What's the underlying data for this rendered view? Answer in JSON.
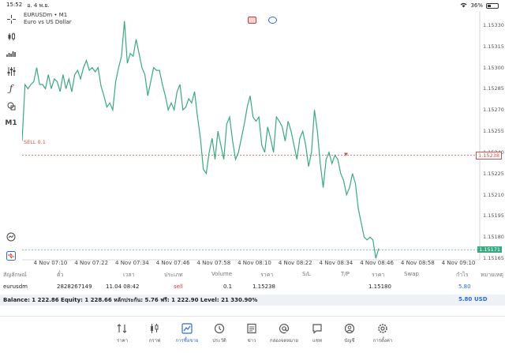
{
  "status": {
    "time": "15:52",
    "date": "อ. 4 พ.ย.",
    "battery": "36%",
    "battery_level": 0.36
  },
  "toolbar": {
    "timeframe_label": "M1"
  },
  "chart": {
    "symbol_line": "EURUSDm • M1",
    "description": "Euro vs US Dollar",
    "sell_line_label": "SELL 0.1",
    "current_price_tag": "1.15171",
    "sell_price_tag": "1.15238",
    "colors": {
      "line": "#3aa981",
      "sell": "#d05050",
      "current": "#3aa981"
    }
  },
  "chart_data": {
    "type": "line",
    "x_labels": [
      "4 Nov 07:10",
      "4 Nov 07:22",
      "4 Nov 07:34",
      "4 Nov 07:46",
      "4 Nov 07:58",
      "4 Nov 08:10",
      "4 Nov 08:22",
      "4 Nov 08:34",
      "4 Nov 08:46",
      "4 Nov 08:58",
      "4 Nov 09:10"
    ],
    "y_ticks": [
      "1.15330",
      "1.15315",
      "1.15300",
      "1.15285",
      "1.15270",
      "1.15255",
      "1.15240",
      "1.15225",
      "1.15210",
      "1.15195",
      "1.15180",
      "1.15165"
    ],
    "ylim": [
      1.1516,
      1.1534
    ],
    "series": [
      {
        "values": [
          1.15248,
          1.15288,
          1.15285,
          1.15288,
          1.1529,
          1.153,
          1.15288,
          1.15288,
          1.15285,
          1.15295,
          1.15285,
          1.15292,
          1.1529,
          1.15283,
          1.15295,
          1.15285,
          1.15292,
          1.15283,
          1.15295,
          1.15298,
          1.15292,
          1.153,
          1.15305,
          1.15298,
          1.153,
          1.15297,
          1.153,
          1.15287,
          1.1528,
          1.15272,
          1.15275,
          1.1527,
          1.1529,
          1.153,
          1.15308,
          1.15333,
          1.15303,
          1.1531,
          1.15308,
          1.1532,
          1.1531,
          1.153,
          1.15295,
          1.1528,
          1.1529,
          1.153,
          1.15298,
          1.15298,
          1.15288,
          1.1528,
          1.1527,
          1.15275,
          1.1527,
          1.15283,
          1.15288,
          1.1527,
          1.15272,
          1.15278,
          1.15275,
          1.15283,
          1.15265,
          1.1525,
          1.15228,
          1.15225,
          1.1524,
          1.1525,
          1.15235,
          1.15255,
          1.15245,
          1.15235,
          1.1526,
          1.15265,
          1.15248,
          1.15235,
          1.1524,
          1.1525,
          1.1526,
          1.15272,
          1.1528,
          1.15265,
          1.15262,
          1.15265,
          1.15245,
          1.1524,
          1.15258,
          1.1525,
          1.1524,
          1.15265,
          1.15262,
          1.15258,
          1.15248,
          1.15262,
          1.15255,
          1.15245,
          1.15235,
          1.1525,
          1.15255,
          1.15245,
          1.1523,
          1.1524,
          1.1527,
          1.15255,
          1.15232,
          1.15215,
          1.15235,
          1.1524,
          1.15232,
          1.15238,
          1.15235,
          1.15225,
          1.1522,
          1.1521,
          1.15215,
          1.15225,
          1.15218,
          1.152,
          1.1519,
          1.1518,
          1.15178,
          1.1518,
          1.15178,
          1.15165,
          1.15172
        ]
      }
    ],
    "hlines": [
      {
        "label": "SELL 0.1",
        "value": 1.15238
      },
      {
        "label": "current",
        "value": 1.15171
      }
    ]
  },
  "positions": {
    "headers": [
      "สัญลักษณ์",
      "ตั๋ว",
      "เวลา",
      "ประเภท",
      "Volume",
      "ราคา",
      "S/L",
      "T/P",
      "ราคา",
      "Swap",
      "กำไร",
      "หมายเหตุ"
    ],
    "rows": [
      {
        "symbol": "eurusdm",
        "ticket": "2828267149",
        "time": "11.04 08:42",
        "type": "sell",
        "volume": "0.1",
        "open_price": "1.15238",
        "sl": "",
        "tp": "",
        "price": "1.15180",
        "swap": "",
        "profit": "5.80",
        "comment": ""
      }
    ]
  },
  "balance": {
    "text": "Balance: 1 222.86 Equity: 1 228.66 หลักประกัน: 5.76 ฟรี: 1 222.90 Level: 21 330.90%",
    "profit": "5.80",
    "currency": "USD"
  },
  "nav": {
    "items": [
      {
        "label": "ราคา",
        "icon": "quotes-icon"
      },
      {
        "label": "กราฟ",
        "icon": "chart-candles-icon"
      },
      {
        "label": "การซื้อขาย",
        "icon": "trade-icon"
      },
      {
        "label": "ประวัติ",
        "icon": "history-icon"
      },
      {
        "label": "ข่าว",
        "icon": "news-icon"
      },
      {
        "label": "กล่องจดหมาย",
        "icon": "mailbox-icon"
      },
      {
        "label": "แชท",
        "icon": "chat-icon"
      },
      {
        "label": "บัญชี",
        "icon": "account-icon"
      },
      {
        "label": "การตั้งค่า",
        "icon": "settings-icon"
      }
    ],
    "active_index": 2
  }
}
